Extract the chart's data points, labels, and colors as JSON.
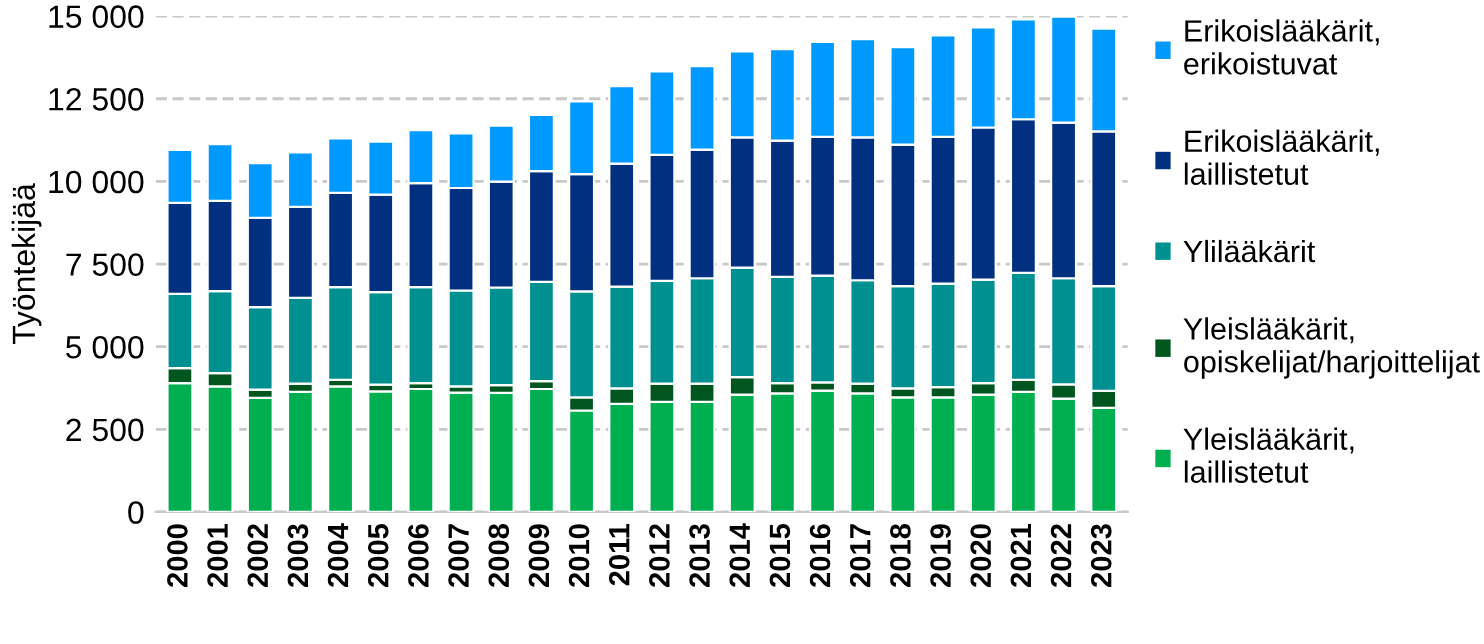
{
  "chart_data": {
    "type": "bar",
    "stacked": true,
    "ylabel": "Työntekijää",
    "categories": [
      "2000",
      "2001",
      "2002",
      "2003",
      "2004",
      "2005",
      "2006",
      "2007",
      "2008",
      "2009",
      "2010",
      "2011",
      "2012",
      "2013",
      "2014",
      "2015",
      "2016",
      "2017",
      "2018",
      "2019",
      "2020",
      "2021",
      "2022",
      "2023"
    ],
    "series": [
      {
        "name": "Yleislääkärit,\nlaillistetut",
        "color": "#00b050",
        "values": [
          3900,
          3800,
          3450,
          3630,
          3800,
          3650,
          3720,
          3610,
          3600,
          3720,
          3070,
          3270,
          3330,
          3330,
          3550,
          3590,
          3670,
          3590,
          3470,
          3470,
          3550,
          3630,
          3430,
          3150
        ]
      },
      {
        "name": "Yleislääkärit,\nopiskelijat/harjoittelijat",
        "color": "#00561e",
        "values": [
          450,
          400,
          250,
          250,
          200,
          200,
          180,
          190,
          240,
          240,
          400,
          470,
          550,
          550,
          530,
          310,
          250,
          290,
          270,
          310,
          350,
          370,
          430,
          510
        ]
      },
      {
        "name": "Ylilääkärit",
        "color": "#009090",
        "values": [
          2250,
          2480,
          2500,
          2600,
          2800,
          2800,
          2900,
          2900,
          2950,
          3000,
          3200,
          3080,
          3110,
          3190,
          3310,
          3210,
          3230,
          3130,
          3090,
          3130,
          3130,
          3230,
          3210,
          3170
        ]
      },
      {
        "name": "Erikoislääkärit,\nlaillistetut",
        "color": "#00307f",
        "values": [
          2750,
          2730,
          2700,
          2750,
          2850,
          2950,
          3150,
          3100,
          3200,
          3350,
          3550,
          3720,
          3810,
          3890,
          3940,
          4120,
          4200,
          4320,
          4280,
          4440,
          4600,
          4650,
          4710,
          4680
        ]
      },
      {
        "name": "Erikoislääkärit,\nerikoistuvat",
        "color": "#0099ff",
        "values": [
          1600,
          1720,
          1650,
          1650,
          1650,
          1600,
          1600,
          1650,
          1700,
          1700,
          2200,
          2340,
          2530,
          2530,
          2600,
          2770,
          2870,
          2970,
          2950,
          3070,
          3030,
          3020,
          3200,
          3110
        ]
      }
    ],
    "ylim": [
      0,
      15000
    ],
    "yticks": [
      0,
      {
        "value": 2500,
        "label": "2 500"
      },
      {
        "value": 5000,
        "label": "5 000"
      },
      {
        "value": 7500,
        "label": "7 500"
      },
      {
        "value": 10000,
        "label": "10 000"
      },
      {
        "value": 12500,
        "label": "12 500"
      },
      {
        "value": 15000,
        "label": "15 000"
      }
    ],
    "grid": "y",
    "legend": "right"
  }
}
